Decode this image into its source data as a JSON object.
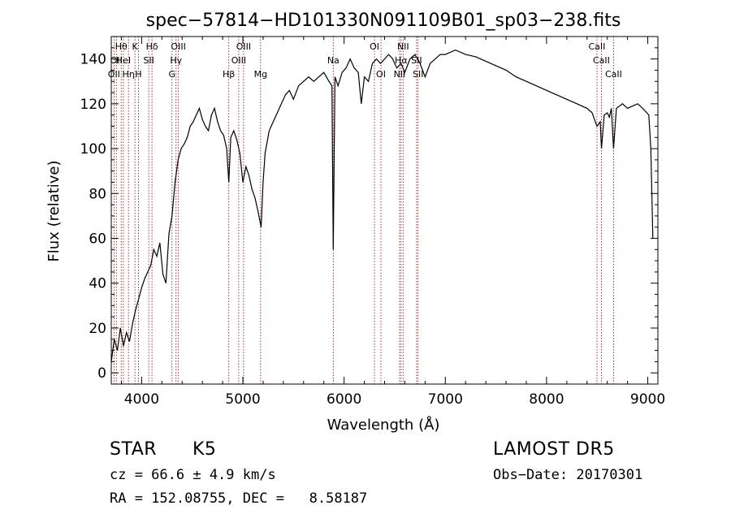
{
  "chart_data": {
    "type": "line",
    "title": "spec−57814−HD101330N091109B01_sp03−238.fits",
    "xlabel": "Wavelength (Å)",
    "ylabel": "Flux (relative)",
    "xlim": [
      3700,
      9100
    ],
    "ylim": [
      -5,
      150
    ],
    "xticks": [
      4000,
      5000,
      6000,
      7000,
      8000,
      9000
    ],
    "yticks": [
      0,
      20,
      40,
      60,
      80,
      100,
      120,
      140
    ],
    "grid": false,
    "line_color": "#000000",
    "marker_color": "#8b0000",
    "series": [
      {
        "x": [
          3700,
          3730,
          3760,
          3790,
          3820,
          3850,
          3880,
          3910,
          3940,
          3970,
          4000,
          4030,
          4060,
          4090,
          4120,
          4150,
          4180,
          4210,
          4240,
          4270,
          4300,
          4330,
          4360,
          4390,
          4420,
          4450,
          4480,
          4510,
          4540,
          4570,
          4600,
          4630,
          4660,
          4690,
          4720,
          4750,
          4780,
          4810,
          4840,
          4861,
          4880,
          4910,
          4940,
          4970,
          5000,
          5030,
          5060,
          5090,
          5120,
          5150,
          5180,
          5200,
          5220,
          5260,
          5300,
          5340,
          5380,
          5420,
          5460,
          5500,
          5550,
          5600,
          5650,
          5700,
          5750,
          5800,
          5850,
          5880,
          5893,
          5910,
          5940,
          5980,
          6020,
          6060,
          6100,
          6140,
          6170,
          6200,
          6240,
          6280,
          6320,
          6360,
          6400,
          6440,
          6480,
          6520,
          6563,
          6600,
          6650,
          6700,
          6750,
          6800,
          6850,
          6900,
          6950,
          7000,
          7100,
          7200,
          7300,
          7400,
          7500,
          7600,
          7700,
          7800,
          7900,
          8000,
          8100,
          8200,
          8300,
          8400,
          8450,
          8498,
          8530,
          8542,
          8570,
          8600,
          8620,
          8640,
          8662,
          8690,
          8750,
          8800,
          8850,
          8900,
          8950,
          8990,
          9010,
          9030,
          9050
        ],
        "y": [
          5,
          15,
          10,
          20,
          12,
          18,
          14,
          22,
          28,
          33,
          38,
          42,
          45,
          48,
          55,
          52,
          58,
          44,
          40,
          62,
          70,
          85,
          95,
          100,
          102,
          105,
          110,
          112,
          115,
          118,
          113,
          110,
          108,
          115,
          118,
          112,
          108,
          106,
          100,
          85,
          105,
          108,
          104,
          98,
          85,
          92,
          88,
          82,
          78,
          72,
          65,
          85,
          98,
          108,
          112,
          116,
          120,
          124,
          126,
          122,
          128,
          130,
          132,
          130,
          132,
          134,
          130,
          128,
          55,
          132,
          128,
          134,
          136,
          140,
          136,
          134,
          120,
          132,
          130,
          138,
          140,
          138,
          140,
          142,
          140,
          136,
          138,
          134,
          140,
          142,
          138,
          132,
          138,
          140,
          142,
          142,
          144,
          142,
          141,
          139,
          137,
          135,
          132,
          130,
          128,
          126,
          124,
          122,
          120,
          118,
          116,
          110,
          112,
          100,
          115,
          116,
          114,
          118,
          100,
          118,
          120,
          118,
          119,
          120,
          118,
          116,
          115,
          100,
          60
        ]
      }
    ],
    "line_ids": [
      {
        "x": 3727,
        "label": "OII",
        "row": 2
      },
      {
        "x": 3750,
        "label": "OII",
        "row": 1
      },
      {
        "x": 3798,
        "label": "Hθ",
        "row": 0
      },
      {
        "x": 3820,
        "label": "HeI",
        "row": 1
      },
      {
        "x": 3870,
        "label": "Hη",
        "row": 2
      },
      {
        "x": 3934,
        "label": "K",
        "row": 0
      },
      {
        "x": 3969,
        "label": "H",
        "row": 2
      },
      {
        "x": 4070,
        "label": "SII",
        "row": 1
      },
      {
        "x": 4102,
        "label": "Hδ",
        "row": 0
      },
      {
        "x": 4300,
        "label": "G",
        "row": 2
      },
      {
        "x": 4340,
        "label": "Hγ",
        "row": 1
      },
      {
        "x": 4363,
        "label": "OIII",
        "row": 0
      },
      {
        "x": 4861,
        "label": "Hβ",
        "row": 2
      },
      {
        "x": 4959,
        "label": "OIII",
        "row": 1
      },
      {
        "x": 5007,
        "label": "OIII",
        "row": 0
      },
      {
        "x": 5175,
        "label": "Mg",
        "row": 2
      },
      {
        "x": 5893,
        "label": "Na",
        "row": 1
      },
      {
        "x": 6300,
        "label": "OI",
        "row": 0
      },
      {
        "x": 6364,
        "label": "OI",
        "row": 2
      },
      {
        "x": 6548,
        "label": "NII",
        "row": 2
      },
      {
        "x": 6563,
        "label": "Hα",
        "row": 1
      },
      {
        "x": 6583,
        "label": "NII",
        "row": 0
      },
      {
        "x": 6716,
        "label": "SII",
        "row": 1
      },
      {
        "x": 6731,
        "label": "SII",
        "row": 2
      },
      {
        "x": 8498,
        "label": "CaII",
        "row": 0
      },
      {
        "x": 8542,
        "label": "CaII",
        "row": 1
      },
      {
        "x": 8662,
        "label": "CaII",
        "row": 2
      }
    ]
  },
  "info": {
    "class_label": "STAR",
    "subclass": "K5",
    "survey": "LAMOST DR5",
    "redshift_line": "cz = 66.6 ± 4.9 km/s",
    "obs_date_line": "Obs−Date: 20170301",
    "coords_line": "RA = 152.08755, DEC =   8.58187"
  }
}
